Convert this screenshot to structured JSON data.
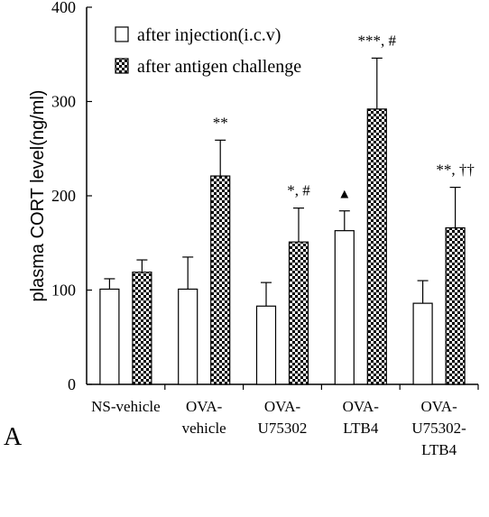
{
  "panel_label": "A",
  "chart_data": {
    "type": "bar",
    "ylabel": "plasma CORT level(ng/ml)",
    "xlabel": "",
    "ylim": [
      0,
      400
    ],
    "yticks": [
      0,
      100,
      200,
      300,
      400
    ],
    "grid": false,
    "legend_position": "top-left",
    "categories": [
      [
        "NS-vehicle"
      ],
      [
        "OVA-",
        "vehicle"
      ],
      [
        "OVA-",
        "U75302"
      ],
      [
        "OVA-",
        "LTB4"
      ],
      [
        "OVA-",
        "U75302-",
        "LTB4"
      ]
    ],
    "series": [
      {
        "name": "after injection(i.c.v)",
        "fill": "white",
        "values": [
          101,
          101,
          83,
          163,
          86
        ],
        "errors": [
          11,
          34,
          25,
          21,
          24
        ],
        "annotations": [
          "",
          "",
          "",
          "▲",
          ""
        ]
      },
      {
        "name": "after antigen challenge",
        "fill": "dotted",
        "values": [
          119,
          221,
          151,
          292,
          166
        ],
        "errors": [
          13,
          38,
          36,
          54,
          43
        ],
        "annotations": [
          "",
          "**",
          "*, #",
          "***, #",
          "**, ††"
        ]
      }
    ]
  }
}
